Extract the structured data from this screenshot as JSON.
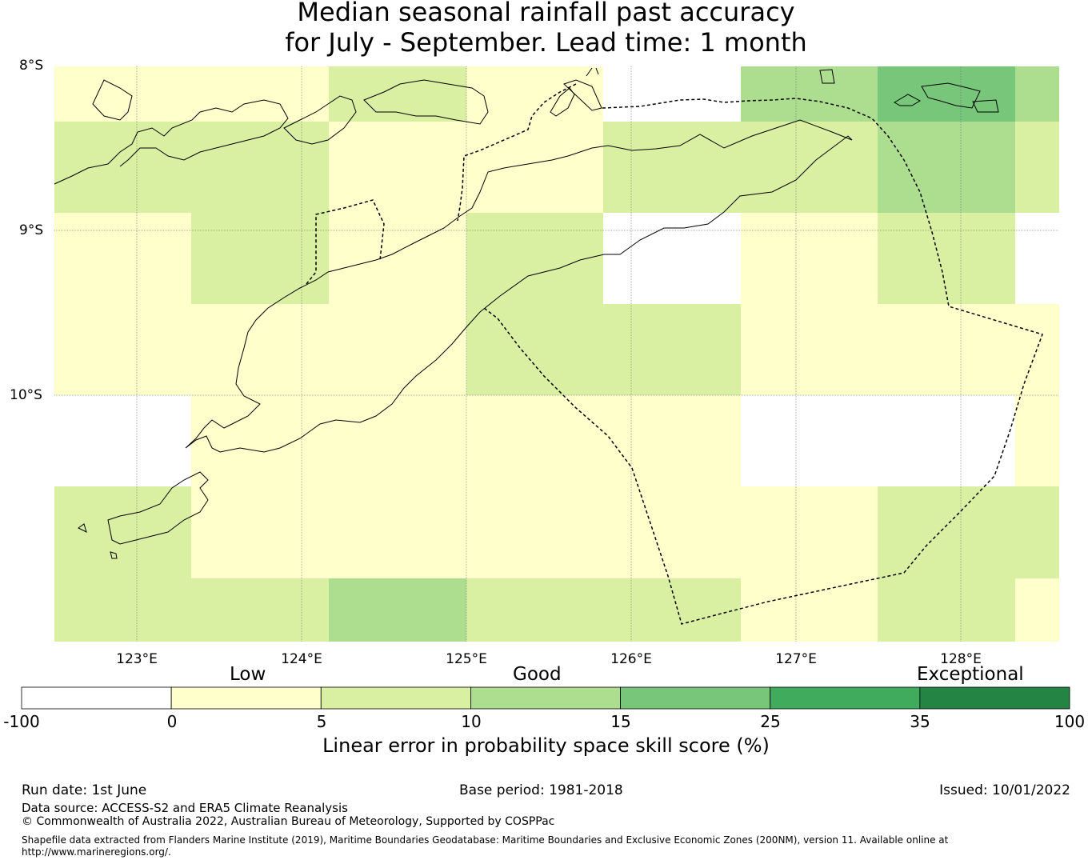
{
  "title": {
    "line1": "Median seasonal rainfall past accuracy",
    "line2": "for July - September. Lead time: 1 month"
  },
  "map": {
    "lat_labels": [
      "8°S",
      "9°S",
      "10°S"
    ],
    "lon_labels": [
      "123°E",
      "124°E",
      "125°E",
      "126°E",
      "127°E",
      "128°E"
    ],
    "grid_rows": [
      [
        "low",
        "low",
        "fair",
        "low",
        "nodata",
        "good",
        "strong",
        "good"
      ],
      [
        "fair",
        "fair",
        "low",
        "low",
        "fair",
        "fair",
        "good",
        "fair"
      ],
      [
        "low",
        "fair",
        "low",
        "fair",
        "nodata",
        "low",
        "fair",
        "nodata"
      ],
      [
        "low",
        "low",
        "low",
        "fair",
        "fair",
        "low",
        "low",
        "low"
      ],
      [
        "nodata",
        "low",
        "low",
        "low",
        "low",
        "nodata",
        "nodata",
        "low"
      ],
      [
        "fair",
        "low",
        "low",
        "low",
        "low",
        "low",
        "fair",
        "fair"
      ],
      [
        "fair",
        "fair",
        "good",
        "fair",
        "fair",
        "low",
        "fair",
        "low"
      ]
    ]
  },
  "colorbar": {
    "categories": [
      "Low",
      "Good",
      "Exceptional"
    ],
    "ticks": [
      "-100",
      "0",
      "5",
      "10",
      "15",
      "25",
      "35",
      "100"
    ],
    "colors": [
      "#ffffff",
      "#ffffcc",
      "#d9f0a3",
      "#addd8e",
      "#78c679",
      "#41ab5d",
      "#238443"
    ],
    "label": "Linear error in probability space skill score (%)"
  },
  "footer": {
    "run_date": "Run date: 1st June",
    "base_period": "Base period: 1981-2018",
    "issued": "Issued: 10/01/2022",
    "data_source": "Data source: ACCESS-S2 and ERA5 Climate Reanalysis",
    "copyright": "© Commonwealth of Australia 2022, Australian Bureau of Meteorology, Supported by COSPPac",
    "shapefile_line1": "Shapefile data extracted from Flanders Marine Institute (2019), Maritime Boundaries Geodatabase: Maritime Boundaries and Exclusive Economic Zones (200NM), version 11. Available online at",
    "shapefile_line2": "http://www.marineregions.org/."
  }
}
